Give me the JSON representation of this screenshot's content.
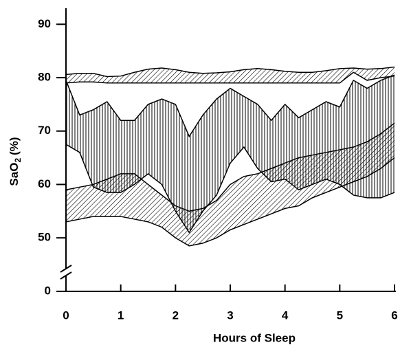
{
  "chart_data": {
    "type": "area_range",
    "x_label": "Hours of Sleep",
    "y_label": {
      "main": "SaO",
      "sub": "2",
      "unit": "(%)"
    },
    "x": [
      0,
      0.25,
      0.5,
      0.75,
      1,
      1.25,
      1.5,
      1.75,
      2,
      2.25,
      2.5,
      2.75,
      3,
      3.25,
      3.5,
      3.75,
      4,
      4.25,
      4.5,
      4.75,
      5,
      5.25,
      5.5,
      5.75,
      6
    ],
    "xlim": [
      0,
      6
    ],
    "xticks": [
      0,
      1,
      2,
      3,
      4,
      5,
      6
    ],
    "ylim": [
      0,
      93
    ],
    "ybreak": [
      0,
      45
    ],
    "yticks": [
      0,
      50,
      60,
      70,
      80,
      90
    ],
    "color": "#000000",
    "series": [
      {
        "hatch": "diagonal",
        "upper": [
          80.6,
          80.8,
          80.8,
          80.2,
          80.3,
          81.0,
          81.6,
          81.8,
          81.5,
          81.0,
          80.8,
          80.9,
          81.1,
          81.5,
          81.7,
          81.5,
          81.2,
          81.0,
          81.0,
          81.3,
          81.7,
          81.8,
          81.6,
          81.7,
          82
        ],
        "lower": [
          79.0,
          79.2,
          79.2,
          79.0,
          79.0,
          79.0,
          79.0,
          79.0,
          79.0,
          79.0,
          79.0,
          79.0,
          79.0,
          79.0,
          79.0,
          79.0,
          79.0,
          79.0,
          79.0,
          79.0,
          79.0,
          81,
          79.5,
          80,
          80.3
        ]
      },
      {
        "hatch": "vertical",
        "upper": [
          79.5,
          73,
          74,
          75.5,
          72,
          72,
          75,
          76,
          75,
          69,
          73,
          76,
          78,
          76.5,
          75,
          72,
          75,
          72.5,
          74,
          75.5,
          74.5,
          79.5,
          78,
          79.5,
          80.5
        ],
        "lower": [
          67.5,
          66,
          59.5,
          58.5,
          58.5,
          60,
          62,
          60,
          55,
          51,
          55,
          58,
          64,
          67,
          63,
          60.5,
          61,
          59,
          60,
          61,
          60,
          58,
          57.5,
          57.5,
          58.5
        ]
      },
      {
        "hatch": "diagonal",
        "upper": [
          59,
          59.5,
          60,
          61,
          62,
          62,
          60,
          58,
          56,
          55,
          55.5,
          57,
          60,
          61.5,
          62,
          63,
          64,
          65,
          65.5,
          66,
          66.5,
          67,
          68,
          69.5,
          71.5
        ],
        "lower": [
          53,
          53.5,
          54,
          54,
          54,
          53.5,
          53,
          52,
          50,
          48.5,
          49,
          50,
          51.5,
          52.5,
          53.5,
          54.5,
          55.5,
          56,
          57.5,
          58.5,
          59.5,
          60.5,
          61.5,
          63,
          65
        ]
      }
    ]
  }
}
